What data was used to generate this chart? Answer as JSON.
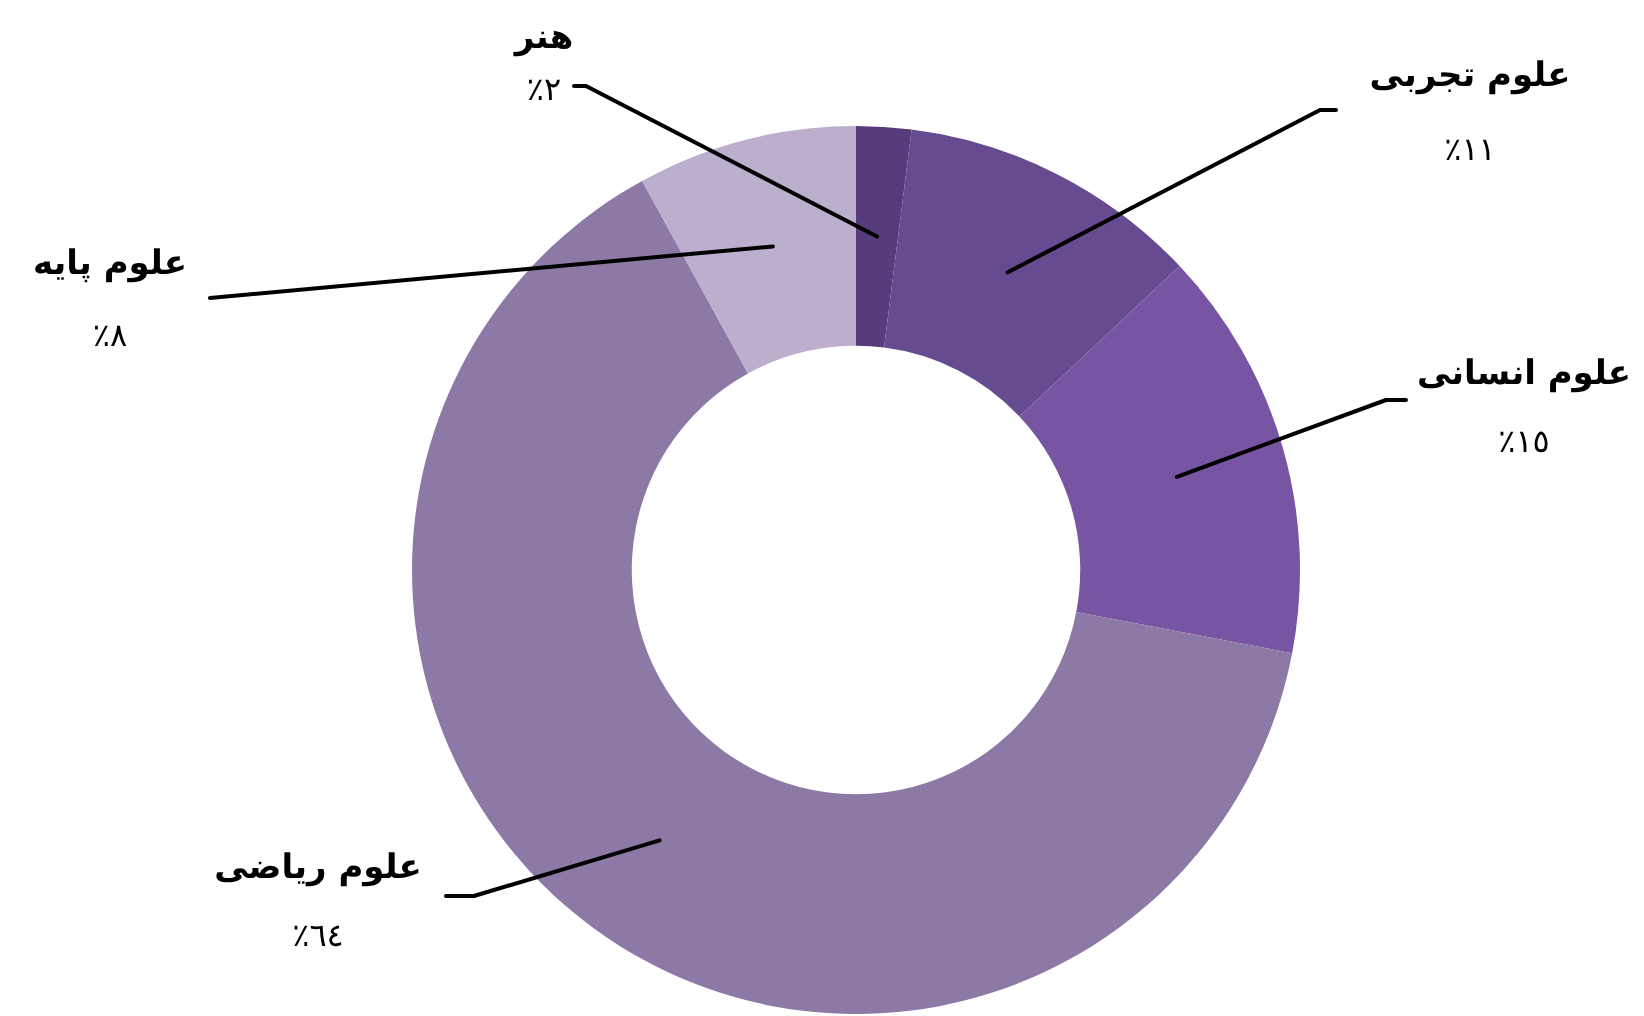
{
  "chart_data": {
    "type": "donut",
    "categories": [
      "هنر",
      "علوم تجربی",
      "علوم انسانی",
      "علوم ریاضی",
      "علوم پایه"
    ],
    "values": [
      2,
      11,
      15,
      64,
      8
    ],
    "colors": [
      "#573c7d",
      "#674b90",
      "#7755a3",
      "#8c79a6",
      "#bbafcd"
    ],
    "value_labels": [
      "٢٪",
      "١١٪",
      "١٥٪",
      "٦٤٪",
      "٨٪"
    ]
  }
}
